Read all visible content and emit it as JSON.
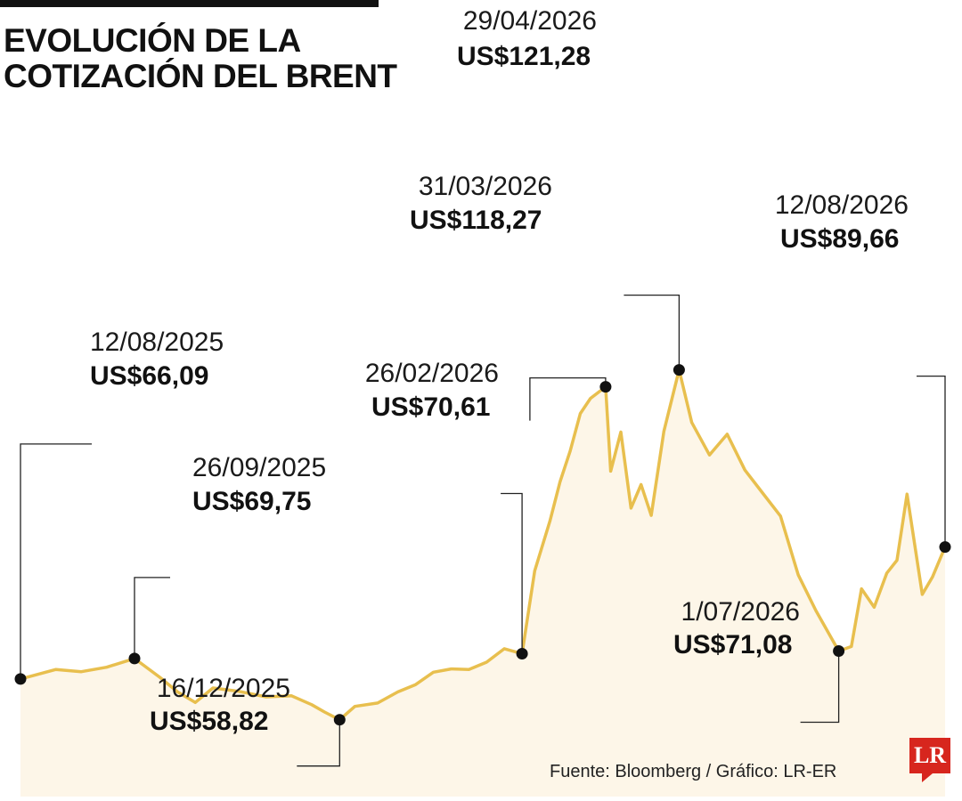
{
  "title_lines": [
    "EVOLUCIÓN DE LA",
    "COTIZACIÓN DEL BRENT"
  ],
  "source": "Fuente: Bloomberg / Gráfico: LR-ER",
  "logo_text": "LR",
  "colors": {
    "line": "#e8bf4e",
    "fill": "#fdf6e8",
    "marker": "#111111",
    "text": "#111111",
    "logo": "#d7261e"
  },
  "chart_data": {
    "type": "area",
    "title": "EVOLUCIÓN DE LA COTIZACIÓN DEL BRENT",
    "xlabel": "",
    "ylabel": "",
    "ylim": [
      50,
      125
    ],
    "xlim": [
      "2025-08-12",
      "2026-08-12"
    ],
    "grid": false,
    "x": [
      "2025-08-12",
      "2025-08-26",
      "2025-09-05",
      "2025-09-15",
      "2025-09-26",
      "2025-10-06",
      "2025-10-13",
      "2025-10-20",
      "2025-10-27",
      "2025-11-06",
      "2025-11-17",
      "2025-11-27",
      "2025-12-05",
      "2025-12-10",
      "2025-12-16",
      "2025-12-22",
      "2025-12-31",
      "2026-01-08",
      "2026-01-15",
      "2026-01-22",
      "2026-01-29",
      "2026-02-05",
      "2026-02-12",
      "2026-02-19",
      "2026-02-26",
      "2026-03-03",
      "2026-03-09",
      "2026-03-13",
      "2026-03-17",
      "2026-03-21",
      "2026-03-25",
      "2026-03-31",
      "2026-04-02",
      "2026-04-06",
      "2026-04-10",
      "2026-04-14",
      "2026-04-18",
      "2026-04-23",
      "2026-04-29",
      "2026-05-04",
      "2026-05-11",
      "2026-05-18",
      "2026-05-25",
      "2026-06-01",
      "2026-06-08",
      "2026-06-15",
      "2026-06-22",
      "2026-07-01",
      "2026-07-06",
      "2026-07-10",
      "2026-07-15",
      "2026-07-20",
      "2026-07-24",
      "2026-07-28",
      "2026-08-03",
      "2026-08-07",
      "2026-08-12"
    ],
    "series": [
      {
        "values": [
          66.09,
          67.8,
          67.4,
          68.2,
          69.75,
          66.4,
          63.8,
          61.9,
          64.5,
          63.9,
          62.9,
          63.1,
          61.5,
          60.2,
          58.82,
          61.2,
          61.8,
          63.8,
          65.1,
          67.3,
          67.9,
          67.8,
          69.1,
          71.5,
          70.61,
          85.4,
          94.3,
          101.3,
          106.8,
          113.5,
          116.2,
          118.27,
          103.2,
          110.2,
          96.6,
          100.8,
          95.3,
          110.3,
          121.28,
          111.9,
          106.1,
          109.8,
          103.4,
          99.3,
          95.2,
          84.7,
          78.3,
          71.08,
          71.9,
          82.2,
          78.9,
          85.0,
          87.3,
          99.1,
          81.2,
          84.3,
          89.66
        ]
      }
    ],
    "annotations": [
      {
        "date": "12/08/2025",
        "value": "US$66,09",
        "x": "2025-08-12",
        "y": 66.09
      },
      {
        "date": "26/09/2025",
        "value": "US$69,75",
        "x": "2025-09-26",
        "y": 69.75
      },
      {
        "date": "16/12/2025",
        "value": "US$58,82",
        "x": "2025-12-16",
        "y": 58.82
      },
      {
        "date": "26/02/2026",
        "value": "US$70,61",
        "x": "2026-02-26",
        "y": 70.61
      },
      {
        "date": "31/03/2026",
        "value": "US$118,27",
        "x": "2026-03-31",
        "y": 118.27
      },
      {
        "date": "29/04/2026",
        "value": "US$121,28",
        "x": "2026-04-29",
        "y": 121.28
      },
      {
        "date": "1/07/2026",
        "value": "US$71,08",
        "x": "2026-07-01",
        "y": 71.08
      },
      {
        "date": "12/08/2026",
        "value": "US$89,66",
        "x": "2026-08-12",
        "y": 89.66
      }
    ]
  }
}
